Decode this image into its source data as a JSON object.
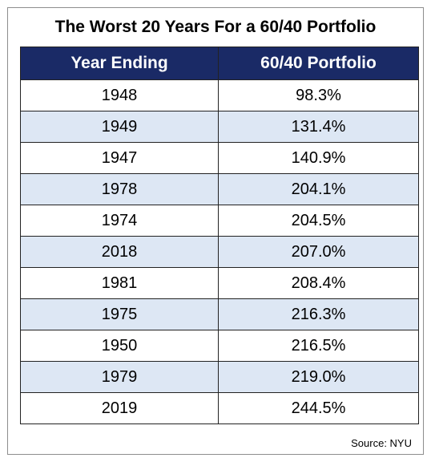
{
  "chart_data": {
    "type": "table",
    "title": "The Worst 20 Years For a 60/40 Portfolio",
    "columns": [
      "Year Ending",
      "60/40 Portfolio"
    ],
    "rows": [
      [
        "1948",
        "98.3%"
      ],
      [
        "1949",
        "131.4%"
      ],
      [
        "1947",
        "140.9%"
      ],
      [
        "1978",
        "204.1%"
      ],
      [
        "1974",
        "204.5%"
      ],
      [
        "2018",
        "207.0%"
      ],
      [
        "1981",
        "208.4%"
      ],
      [
        "1975",
        "216.3%"
      ],
      [
        "1950",
        "216.5%"
      ],
      [
        "1979",
        "219.0%"
      ],
      [
        "2019",
        "244.5%"
      ]
    ],
    "source": "Source: NYU"
  },
  "colors": {
    "header_bg": "#1a2a66",
    "header_text": "#ffffff",
    "alt_row_bg": "#dde7f4",
    "row_bg": "#ffffff"
  }
}
